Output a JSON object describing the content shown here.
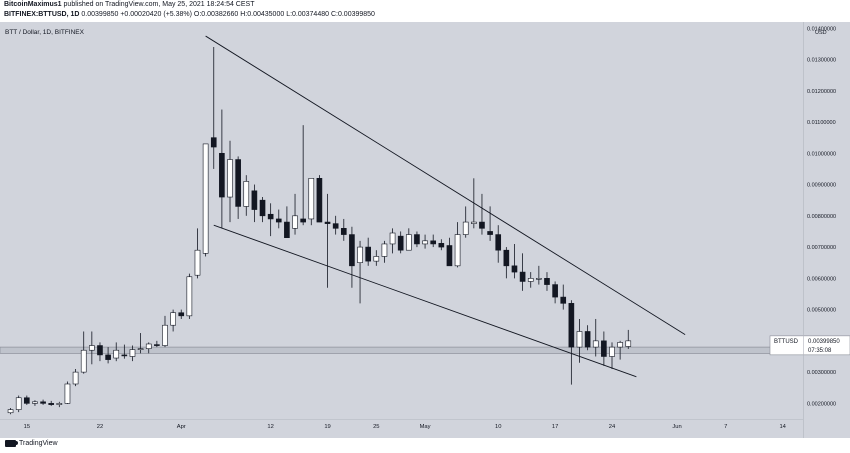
{
  "header": {
    "author": "BitcoinMaximus1",
    "published": "published on TradingView.com, May 25, 2021 18:24:54 CEST",
    "symbol": "BITFINEX:BTTUSD, 1D",
    "price": "0.00399850",
    "change": "+0.00020420 (+5.38%)",
    "open": "O:0.00382660",
    "high": "H:0.00435000",
    "low": "L:0.00374480",
    "close": "C:0.00399850"
  },
  "footer": {
    "brand": "TradingView"
  },
  "chart_data": {
    "type": "candlestick",
    "title": "BTT / Dollar, 1D, BITFINEX",
    "currency": "USD",
    "ylim": [
      0.0015,
      0.0142
    ],
    "y_ticks": [
      "0.01400000",
      "0.01300000",
      "0.01200000",
      "0.01100000",
      "0.01000000",
      "0.00900000",
      "0.00800000",
      "0.00700000",
      "0.00600000",
      "0.00500000",
      "0.00400000",
      "0.00300000",
      "0.00200000"
    ],
    "y_tick_values": [
      0.014,
      0.013,
      0.012,
      0.011,
      0.01,
      0.009,
      0.008,
      0.007,
      0.006,
      0.005,
      0.004,
      0.003,
      0.002
    ],
    "x_ticks": [
      {
        "label": "15",
        "index": 2
      },
      {
        "label": "22",
        "index": 11
      },
      {
        "label": "Apr",
        "index": 21
      },
      {
        "label": "12",
        "index": 32
      },
      {
        "label": "19",
        "index": 39
      },
      {
        "label": "25",
        "index": 45
      },
      {
        "label": "May",
        "index": 51
      },
      {
        "label": "10",
        "index": 60
      },
      {
        "label": "17",
        "index": 67
      },
      {
        "label": "24",
        "index": 74
      },
      {
        "label": "Jun",
        "index": 82
      },
      {
        "label": "7",
        "index": 88
      },
      {
        "label": "14",
        "index": 95
      }
    ],
    "x_index_range": [
      -1.3,
      97.5
    ],
    "candles": [
      [
        0.0017,
        0.00185,
        0.00165,
        0.0018
      ],
      [
        0.0018,
        0.00225,
        0.00172,
        0.00218
      ],
      [
        0.00218,
        0.00225,
        0.00195,
        0.002
      ],
      [
        0.002,
        0.0021,
        0.00192,
        0.00205
      ],
      [
        0.00205,
        0.00212,
        0.00195,
        0.002
      ],
      [
        0.002,
        0.00208,
        0.00192,
        0.00196
      ],
      [
        0.00196,
        0.00205,
        0.00188,
        0.002
      ],
      [
        0.002,
        0.0027,
        0.00198,
        0.00262
      ],
      [
        0.00262,
        0.0031,
        0.00255,
        0.003
      ],
      [
        0.003,
        0.0043,
        0.00295,
        0.0037
      ],
      [
        0.0037,
        0.0043,
        0.00325,
        0.00385
      ],
      [
        0.00385,
        0.00395,
        0.00335,
        0.00355
      ],
      [
        0.00355,
        0.0038,
        0.00328,
        0.0034
      ],
      [
        0.00345,
        0.00395,
        0.00335,
        0.0037
      ],
      [
        0.00355,
        0.00388,
        0.00343,
        0.00352
      ],
      [
        0.0035,
        0.00385,
        0.00335,
        0.00372
      ],
      [
        0.00372,
        0.00425,
        0.0036,
        0.00375
      ],
      [
        0.00375,
        0.00395,
        0.0036,
        0.0039
      ],
      [
        0.00388,
        0.004,
        0.0038,
        0.00385
      ],
      [
        0.00385,
        0.0048,
        0.0038,
        0.0045
      ],
      [
        0.0045,
        0.005,
        0.0043,
        0.0049
      ],
      [
        0.0049,
        0.005,
        0.0047,
        0.0048
      ],
      [
        0.0048,
        0.00615,
        0.0047,
        0.00605
      ],
      [
        0.0061,
        0.0076,
        0.006,
        0.0069
      ],
      [
        0.0068,
        0.0102,
        0.0067,
        0.0103
      ],
      [
        0.0105,
        0.0134,
        0.0095,
        0.0102
      ],
      [
        0.01,
        0.0114,
        0.0076,
        0.0086
      ],
      [
        0.0086,
        0.0104,
        0.0078,
        0.0098
      ],
      [
        0.0098,
        0.0099,
        0.0079,
        0.0083
      ],
      [
        0.0083,
        0.0093,
        0.008,
        0.0091
      ],
      [
        0.0088,
        0.009,
        0.0078,
        0.0082
      ],
      [
        0.0085,
        0.0086,
        0.0078,
        0.008
      ],
      [
        0.00805,
        0.0084,
        0.00735,
        0.0079
      ],
      [
        0.0079,
        0.0082,
        0.0076,
        0.0078
      ],
      [
        0.0078,
        0.0083,
        0.0074,
        0.0073
      ],
      [
        0.0076,
        0.0087,
        0.0074,
        0.008
      ],
      [
        0.0079,
        0.0109,
        0.0077,
        0.0078
      ],
      [
        0.0079,
        0.0092,
        0.0077,
        0.0092
      ],
      [
        0.0092,
        0.0093,
        0.0078,
        0.0078
      ],
      [
        0.0078,
        0.0087,
        0.0057,
        0.00775
      ],
      [
        0.00775,
        0.008,
        0.0074,
        0.0076
      ],
      [
        0.0076,
        0.0079,
        0.0072,
        0.0074
      ],
      [
        0.0074,
        0.00765,
        0.0057,
        0.0064
      ],
      [
        0.0065,
        0.0072,
        0.0052,
        0.007
      ],
      [
        0.007,
        0.0073,
        0.0064,
        0.00655
      ],
      [
        0.00655,
        0.0069,
        0.0064,
        0.0067
      ],
      [
        0.0067,
        0.0072,
        0.0065,
        0.0071
      ],
      [
        0.0071,
        0.0076,
        0.0068,
        0.00745
      ],
      [
        0.00735,
        0.0075,
        0.0068,
        0.0069
      ],
      [
        0.0069,
        0.0076,
        0.0069,
        0.0074
      ],
      [
        0.0074,
        0.0075,
        0.007,
        0.0071
      ],
      [
        0.0071,
        0.0074,
        0.00695,
        0.0072
      ],
      [
        0.0072,
        0.0074,
        0.007,
        0.0071
      ],
      [
        0.00712,
        0.00725,
        0.0069,
        0.007
      ],
      [
        0.00705,
        0.0073,
        0.0065,
        0.0064
      ],
      [
        0.0064,
        0.0078,
        0.00635,
        0.0074
      ],
      [
        0.0074,
        0.0083,
        0.0073,
        0.0078
      ],
      [
        0.00775,
        0.0092,
        0.0076,
        0.0078
      ],
      [
        0.0078,
        0.0087,
        0.0074,
        0.0076
      ],
      [
        0.0075,
        0.0083,
        0.0072,
        0.0074
      ],
      [
        0.0074,
        0.0077,
        0.0065,
        0.0069
      ],
      [
        0.0069,
        0.007,
        0.006,
        0.0064
      ],
      [
        0.0064,
        0.0071,
        0.006,
        0.0062
      ],
      [
        0.0062,
        0.0068,
        0.0056,
        0.0059
      ],
      [
        0.0059,
        0.0062,
        0.0057,
        0.006
      ],
      [
        0.006,
        0.0064,
        0.0058,
        0.006
      ],
      [
        0.006,
        0.0062,
        0.0056,
        0.0058
      ],
      [
        0.0058,
        0.0059,
        0.0052,
        0.0054
      ],
      [
        0.0054,
        0.0058,
        0.005,
        0.0052
      ],
      [
        0.0052,
        0.0053,
        0.0026,
        0.0038
      ],
      [
        0.0038,
        0.0047,
        0.0033,
        0.0043
      ],
      [
        0.0043,
        0.0045,
        0.0037,
        0.0038
      ],
      [
        0.0038,
        0.0047,
        0.0035,
        0.004
      ],
      [
        0.004,
        0.0043,
        0.0032,
        0.0035
      ],
      [
        0.0035,
        0.00395,
        0.0031,
        0.0038
      ],
      [
        0.0038,
        0.004,
        0.0034,
        0.00395
      ],
      [
        0.00382,
        0.00435,
        0.00374,
        0.004
      ]
    ],
    "trendlines": [
      {
        "from": [
          24.0,
          0.01375
        ],
        "to": [
          83.0,
          0.0042
        ]
      },
      {
        "from": [
          25.0,
          0.0077
        ],
        "to": [
          77.0,
          0.00285
        ]
      }
    ],
    "support_zone": [
      0.0036,
      0.0038
    ],
    "last_price_label": "BTTUSD",
    "last_price_value": "0.00399850",
    "countdown": "07:35:08",
    "colors": {
      "background": "#d1d4dc",
      "up_body": "#ffffff",
      "down_body": "#131722",
      "wick": "#131722",
      "line": "#131722",
      "zone_fill": "#bfc3cc",
      "zone_stroke": "#8a8e98",
      "axis_text": "#131722"
    }
  }
}
